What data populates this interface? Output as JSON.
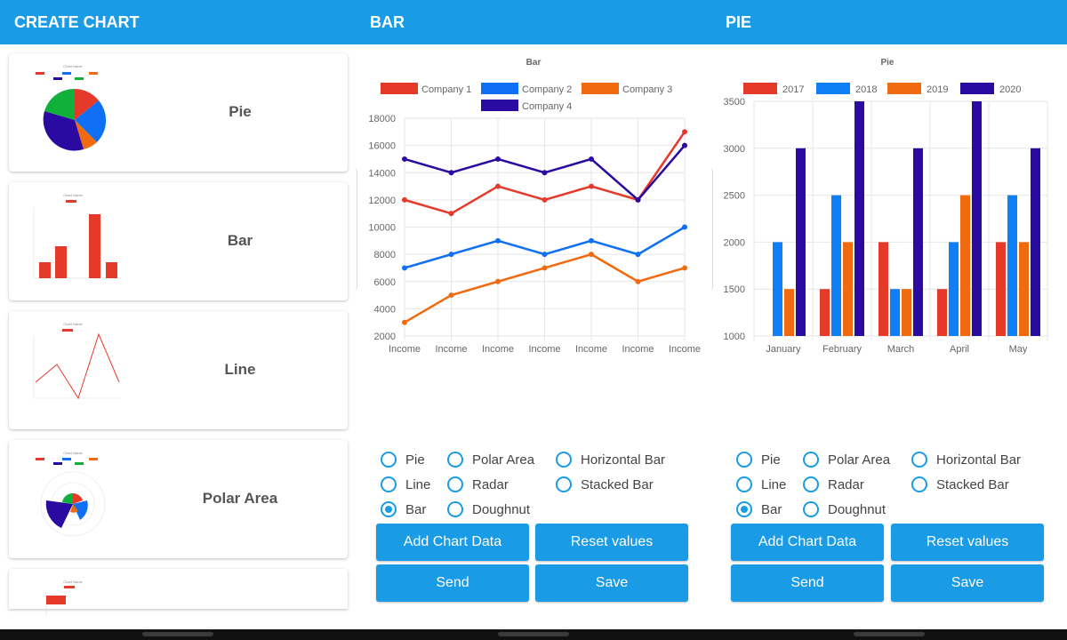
{
  "screens": [
    {
      "title": "CREATE CHART"
    },
    {
      "title": "BAR"
    },
    {
      "title": "PIE"
    }
  ],
  "chart_list": {
    "items": [
      {
        "label": "Pie",
        "thumb": "pie"
      },
      {
        "label": "Bar",
        "thumb": "bar"
      },
      {
        "label": "Line",
        "thumb": "line"
      },
      {
        "label": "Polar Area",
        "thumb": "polar"
      },
      {
        "label": "",
        "thumb": "hbar"
      }
    ]
  },
  "radio_options": [
    "Pie",
    "Polar Area",
    "Horizontal Bar",
    "Line",
    "Radar",
    "Stacked Bar",
    "Bar",
    "Doughnut"
  ],
  "selected_option": "Bar",
  "buttons": {
    "add_chart_data": "Add Chart Data",
    "reset_values": "Reset values",
    "send": "Send",
    "save": "Save"
  },
  "chart_data": [
    {
      "type": "line",
      "title": "Bar",
      "categories": [
        "Income",
        "Income",
        "Income",
        "Income",
        "Income",
        "Income",
        "Income"
      ],
      "ylim": [
        2000,
        18000
      ],
      "yticks": [
        2000,
        4000,
        6000,
        8000,
        10000,
        12000,
        14000,
        16000,
        18000
      ],
      "grid": true,
      "legend": "top",
      "series": [
        {
          "name": "Company 1",
          "color": "#e53a2a",
          "values": [
            12000,
            11000,
            13000,
            12000,
            13000,
            12000,
            17000
          ]
        },
        {
          "name": "Company 2",
          "color": "#0f6ff5",
          "values": [
            7000,
            8000,
            9000,
            8000,
            9000,
            8000,
            10000
          ]
        },
        {
          "name": "Company 3",
          "color": "#f06a0f",
          "values": [
            3000,
            5000,
            6000,
            7000,
            8000,
            6000,
            7000
          ]
        },
        {
          "name": "Company 4",
          "color": "#2a0aa0",
          "values": [
            15000,
            14000,
            15000,
            14000,
            15000,
            12000,
            16000
          ]
        }
      ]
    },
    {
      "type": "bar",
      "title": "Pie",
      "categories": [
        "January",
        "February",
        "March",
        "April",
        "May"
      ],
      "ylim": [
        1000,
        3500
      ],
      "yticks": [
        1000,
        1500,
        2000,
        2500,
        3000,
        3500
      ],
      "grid": true,
      "legend": "top",
      "series": [
        {
          "name": "2017",
          "color": "#e53a2a",
          "values": [
            1000,
            1500,
            2000,
            1500,
            2000
          ]
        },
        {
          "name": "2018",
          "color": "#0f7ff5",
          "values": [
            2000,
            2500,
            1500,
            2000,
            2500
          ]
        },
        {
          "name": "2019",
          "color": "#f06a0f",
          "values": [
            1500,
            2000,
            1500,
            2500,
            2000
          ]
        },
        {
          "name": "2020",
          "color": "#2a0aa0",
          "values": [
            3000,
            3500,
            3000,
            3500,
            3000
          ]
        }
      ]
    }
  ]
}
